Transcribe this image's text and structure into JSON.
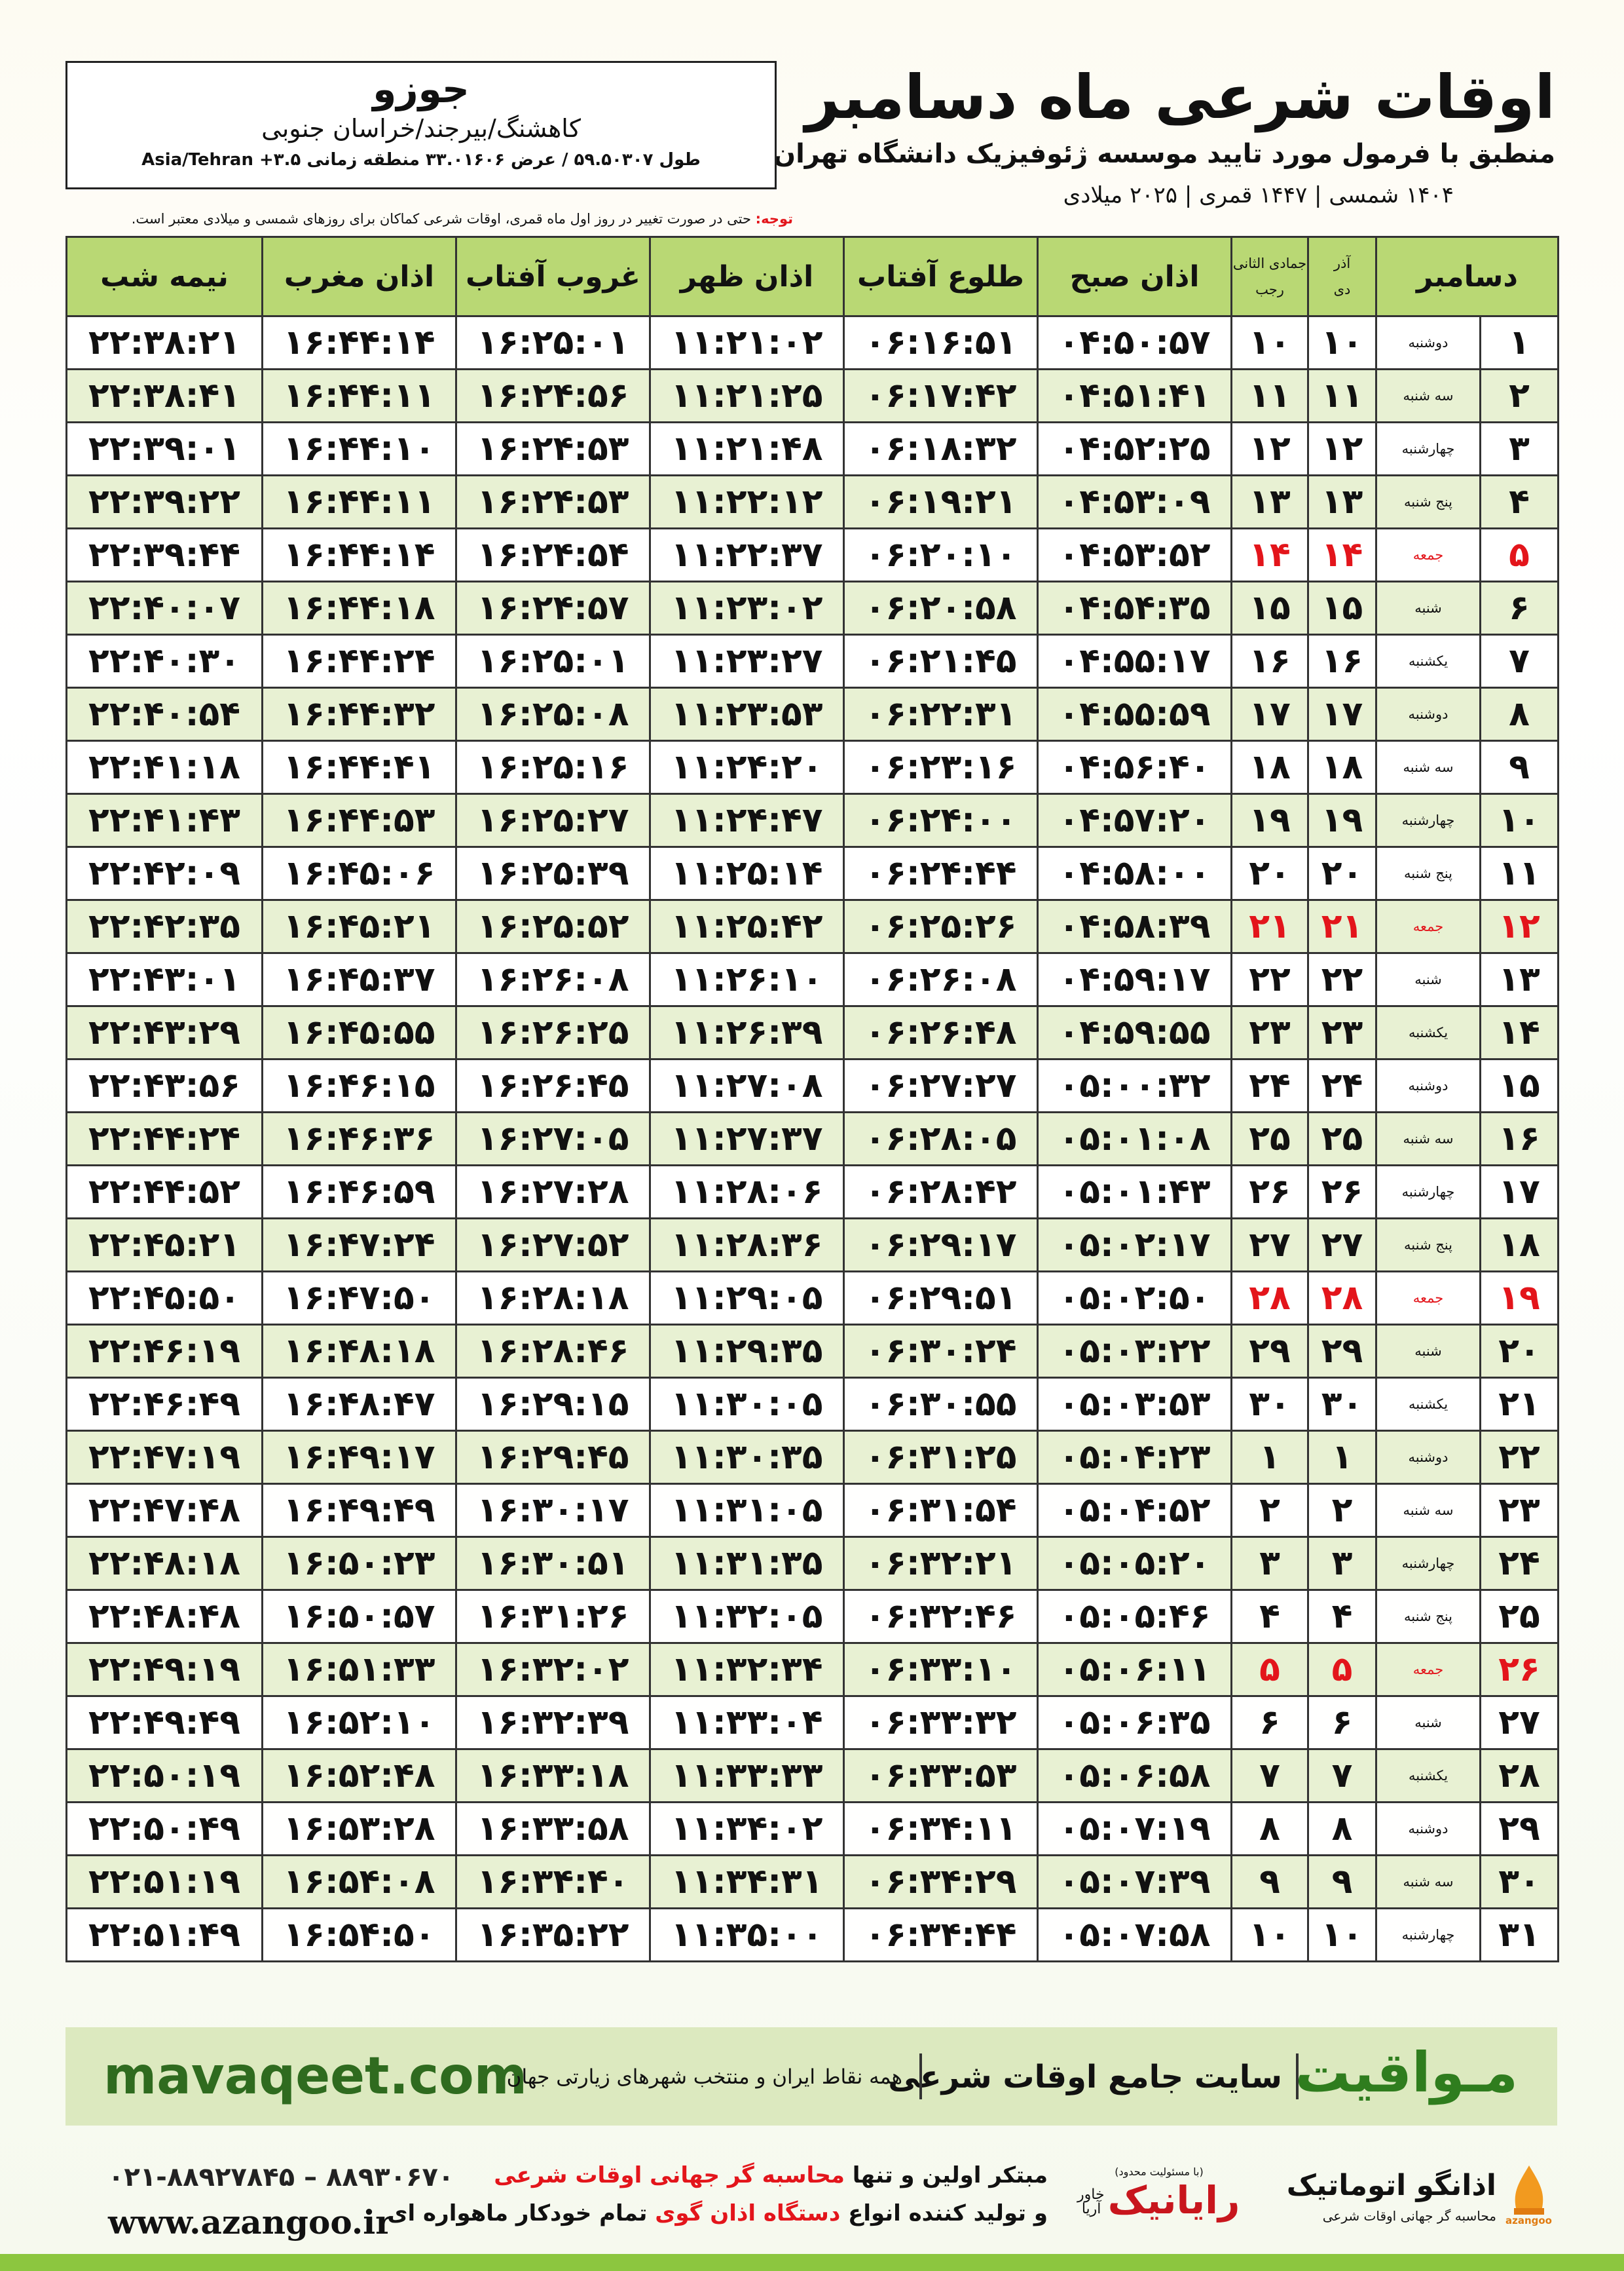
{
  "header": {
    "title": "اوقات شرعی ماه دسامبر",
    "subtitle": "منطبق با فرمول مورد تایید موسسه ژئوفیزیک دانشگاه تهران",
    "dates": "۱۴۰۴ شمسی | ۱۴۴۷ قمری | ۲۰۲۵ میلادی"
  },
  "location": {
    "city": "جوزو",
    "region": "کاهشنگ/بیرجند/خراسان جنوبی",
    "coords": "طول ۵۹.۵۰۳۰۷ / عرض ۳۳.۰۱۶۰۶ منطقه زمانی ۳.۵+ Asia/Tehran"
  },
  "note": {
    "label": "توجه:",
    "text": "حتی در صورت تغییر در روز اول ماه قمری، اوقات شرعی کماکان برای روزهای شمسی و میلادی معتبر است."
  },
  "table": {
    "headers": {
      "month": "دسامبر",
      "solar_top": "آذر",
      "solar_bottom": "دی",
      "lunar_top": "جمادی الثانی",
      "lunar_bottom": "رجب",
      "columns": [
        "اذان صبح",
        "طلوع آفتاب",
        "اذان ظهر",
        "غروب آفتاب",
        "اذان مغرب",
        "نیمه شب"
      ]
    },
    "rows": [
      {
        "cells": [
          "۱",
          "دوشنبه",
          "۱۰",
          "۱۰",
          "۰۴:۵۰:۵۷",
          "۰۶:۱۶:۵۱",
          "۱۱:۲۱:۰۲",
          "۱۶:۲۵:۰۱",
          "۱۶:۴۴:۱۴",
          "۲۲:۳۸:۲۱"
        ]
      },
      {
        "cells": [
          "۲",
          "سه شنبه",
          "۱۱",
          "۱۱",
          "۰۴:۵۱:۴۱",
          "۰۶:۱۷:۴۲",
          "۱۱:۲۱:۲۵",
          "۱۶:۲۴:۵۶",
          "۱۶:۴۴:۱۱",
          "۲۲:۳۸:۴۱"
        ]
      },
      {
        "cells": [
          "۳",
          "چهارشنبه",
          "۱۲",
          "۱۲",
          "۰۴:۵۲:۲۵",
          "۰۶:۱۸:۳۲",
          "۱۱:۲۱:۴۸",
          "۱۶:۲۴:۵۳",
          "۱۶:۴۴:۱۰",
          "۲۲:۳۹:۰۱"
        ]
      },
      {
        "cells": [
          "۴",
          "پنج شنبه",
          "۱۳",
          "۱۳",
          "۰۴:۵۳:۰۹",
          "۰۶:۱۹:۲۱",
          "۱۱:۲۲:۱۲",
          "۱۶:۲۴:۵۳",
          "۱۶:۴۴:۱۱",
          "۲۲:۳۹:۲۲"
        ]
      },
      {
        "cells": [
          "۵",
          "جمعه",
          "۱۴",
          "۱۴",
          "۰۴:۵۳:۵۲",
          "۰۶:۲۰:۱۰",
          "۱۱:۲۲:۳۷",
          "۱۶:۲۴:۵۴",
          "۱۶:۴۴:۱۴",
          "۲۲:۳۹:۴۴"
        ],
        "color": "#e3151b"
      },
      {
        "cells": [
          "۶",
          "شنبه",
          "۱۵",
          "۱۵",
          "۰۴:۵۴:۳۵",
          "۰۶:۲۰:۵۸",
          "۱۱:۲۳:۰۲",
          "۱۶:۲۴:۵۷",
          "۱۶:۴۴:۱۸",
          "۲۲:۴۰:۰۷"
        ]
      },
      {
        "cells": [
          "۷",
          "یکشنبه",
          "۱۶",
          "۱۶",
          "۰۴:۵۵:۱۷",
          "۰۶:۲۱:۴۵",
          "۱۱:۲۳:۲۷",
          "۱۶:۲۵:۰۱",
          "۱۶:۴۴:۲۴",
          "۲۲:۴۰:۳۰"
        ]
      },
      {
        "cells": [
          "۸",
          "دوشنبه",
          "۱۷",
          "۱۷",
          "۰۴:۵۵:۵۹",
          "۰۶:۲۲:۳۱",
          "۱۱:۲۳:۵۳",
          "۱۶:۲۵:۰۸",
          "۱۶:۴۴:۳۲",
          "۲۲:۴۰:۵۴"
        ]
      },
      {
        "cells": [
          "۹",
          "سه شنبه",
          "۱۸",
          "۱۸",
          "۰۴:۵۶:۴۰",
          "۰۶:۲۳:۱۶",
          "۱۱:۲۴:۲۰",
          "۱۶:۲۵:۱۶",
          "۱۶:۴۴:۴۱",
          "۲۲:۴۱:۱۸"
        ]
      },
      {
        "cells": [
          "۱۰",
          "چهارشنبه",
          "۱۹",
          "۱۹",
          "۰۴:۵۷:۲۰",
          "۰۶:۲۴:۰۰",
          "۱۱:۲۴:۴۷",
          "۱۶:۲۵:۲۷",
          "۱۶:۴۴:۵۳",
          "۲۲:۴۱:۴۳"
        ]
      },
      {
        "cells": [
          "۱۱",
          "پنج شنبه",
          "۲۰",
          "۲۰",
          "۰۴:۵۸:۰۰",
          "۰۶:۲۴:۴۴",
          "۱۱:۲۵:۱۴",
          "۱۶:۲۵:۳۹",
          "۱۶:۴۵:۰۶",
          "۲۲:۴۲:۰۹"
        ]
      },
      {
        "cells": [
          "۱۲",
          "جمعه",
          "۲۱",
          "۲۱",
          "۰۴:۵۸:۳۹",
          "۰۶:۲۵:۲۶",
          "۱۱:۲۵:۴۲",
          "۱۶:۲۵:۵۲",
          "۱۶:۴۵:۲۱",
          "۲۲:۴۲:۳۵"
        ],
        "color": "#e3151b"
      },
      {
        "cells": [
          "۱۳",
          "شنبه",
          "۲۲",
          "۲۲",
          "۰۴:۵۹:۱۷",
          "۰۶:۲۶:۰۸",
          "۱۱:۲۶:۱۰",
          "۱۶:۲۶:۰۸",
          "۱۶:۴۵:۳۷",
          "۲۲:۴۳:۰۱"
        ]
      },
      {
        "cells": [
          "۱۴",
          "یکشنبه",
          "۲۳",
          "۲۳",
          "۰۴:۵۹:۵۵",
          "۰۶:۲۶:۴۸",
          "۱۱:۲۶:۳۹",
          "۱۶:۲۶:۲۵",
          "۱۶:۴۵:۵۵",
          "۲۲:۴۳:۲۹"
        ]
      },
      {
        "cells": [
          "۱۵",
          "دوشنبه",
          "۲۴",
          "۲۴",
          "۰۵:۰۰:۳۲",
          "۰۶:۲۷:۲۷",
          "۱۱:۲۷:۰۸",
          "۱۶:۲۶:۴۵",
          "۱۶:۴۶:۱۵",
          "۲۲:۴۳:۵۶"
        ]
      },
      {
        "cells": [
          "۱۶",
          "سه شنبه",
          "۲۵",
          "۲۵",
          "۰۵:۰۱:۰۸",
          "۰۶:۲۸:۰۵",
          "۱۱:۲۷:۳۷",
          "۱۶:۲۷:۰۵",
          "۱۶:۴۶:۳۶",
          "۲۲:۴۴:۲۴"
        ]
      },
      {
        "cells": [
          "۱۷",
          "چهارشنبه",
          "۲۶",
          "۲۶",
          "۰۵:۰۱:۴۳",
          "۰۶:۲۸:۴۲",
          "۱۱:۲۸:۰۶",
          "۱۶:۲۷:۲۸",
          "۱۶:۴۶:۵۹",
          "۲۲:۴۴:۵۲"
        ]
      },
      {
        "cells": [
          "۱۸",
          "پنج شنبه",
          "۲۷",
          "۲۷",
          "۰۵:۰۲:۱۷",
          "۰۶:۲۹:۱۷",
          "۱۱:۲۸:۳۶",
          "۱۶:۲۷:۵۲",
          "۱۶:۴۷:۲۴",
          "۲۲:۴۵:۲۱"
        ]
      },
      {
        "cells": [
          "۱۹",
          "جمعه",
          "۲۸",
          "۲۸",
          "۰۵:۰۲:۵۰",
          "۰۶:۲۹:۵۱",
          "۱۱:۲۹:۰۵",
          "۱۶:۲۸:۱۸",
          "۱۶:۴۷:۵۰",
          "۲۲:۴۵:۵۰"
        ],
        "color": "#e3151b"
      },
      {
        "cells": [
          "۲۰",
          "شنبه",
          "۲۹",
          "۲۹",
          "۰۵:۰۳:۲۲",
          "۰۶:۳۰:۲۴",
          "۱۱:۲۹:۳۵",
          "۱۶:۲۸:۴۶",
          "۱۶:۴۸:۱۸",
          "۲۲:۴۶:۱۹"
        ]
      },
      {
        "cells": [
          "۲۱",
          "یکشنبه",
          "۳۰",
          "۳۰",
          "۰۵:۰۳:۵۳",
          "۰۶:۳۰:۵۵",
          "۱۱:۳۰:۰۵",
          "۱۶:۲۹:۱۵",
          "۱۶:۴۸:۴۷",
          "۲۲:۴۶:۴۹"
        ]
      },
      {
        "cells": [
          "۲۲",
          "دوشنبه",
          "۱",
          "۱",
          "۰۵:۰۴:۲۳",
          "۰۶:۳۱:۲۵",
          "۱۱:۳۰:۳۵",
          "۱۶:۲۹:۴۵",
          "۱۶:۴۹:۱۷",
          "۲۲:۴۷:۱۹"
        ]
      },
      {
        "cells": [
          "۲۳",
          "سه شنبه",
          "۲",
          "۲",
          "۰۵:۰۴:۵۲",
          "۰۶:۳۱:۵۴",
          "۱۱:۳۱:۰۵",
          "۱۶:۳۰:۱۷",
          "۱۶:۴۹:۴۹",
          "۲۲:۴۷:۴۸"
        ]
      },
      {
        "cells": [
          "۲۴",
          "چهارشنبه",
          "۳",
          "۳",
          "۰۵:۰۵:۲۰",
          "۰۶:۳۲:۲۱",
          "۱۱:۳۱:۳۵",
          "۱۶:۳۰:۵۱",
          "۱۶:۵۰:۲۳",
          "۲۲:۴۸:۱۸"
        ]
      },
      {
        "cells": [
          "۲۵",
          "پنج شنبه",
          "۴",
          "۴",
          "۰۵:۰۵:۴۶",
          "۰۶:۳۲:۴۶",
          "۱۱:۳۲:۰۵",
          "۱۶:۳۱:۲۶",
          "۱۶:۵۰:۵۷",
          "۲۲:۴۸:۴۸"
        ]
      },
      {
        "cells": [
          "۲۶",
          "جمعه",
          "۵",
          "۵",
          "۰۵:۰۶:۱۱",
          "۰۶:۳۳:۱۰",
          "۱۱:۳۲:۳۴",
          "۱۶:۳۲:۰۲",
          "۱۶:۵۱:۳۳",
          "۲۲:۴۹:۱۹"
        ],
        "color": "#e3151b"
      },
      {
        "cells": [
          "۲۷",
          "شنبه",
          "۶",
          "۶",
          "۰۵:۰۶:۳۵",
          "۰۶:۳۳:۳۲",
          "۱۱:۳۳:۰۴",
          "۱۶:۳۲:۳۹",
          "۱۶:۵۲:۱۰",
          "۲۲:۴۹:۴۹"
        ]
      },
      {
        "cells": [
          "۲۸",
          "یکشنبه",
          "۷",
          "۷",
          "۰۵:۰۶:۵۸",
          "۰۶:۳۳:۵۳",
          "۱۱:۳۳:۳۳",
          "۱۶:۳۳:۱۸",
          "۱۶:۵۲:۴۸",
          "۲۲:۵۰:۱۹"
        ]
      },
      {
        "cells": [
          "۲۹",
          "دوشنبه",
          "۸",
          "۸",
          "۰۵:۰۷:۱۹",
          "۰۶:۳۴:۱۱",
          "۱۱:۳۴:۰۲",
          "۱۶:۳۳:۵۸",
          "۱۶:۵۳:۲۸",
          "۲۲:۵۰:۴۹"
        ]
      },
      {
        "cells": [
          "۳۰",
          "سه شنبه",
          "۹",
          "۹",
          "۰۵:۰۷:۳۹",
          "۰۶:۳۴:۲۹",
          "۱۱:۳۴:۳۱",
          "۱۶:۳۴:۴۰",
          "۱۶:۵۴:۰۸",
          "۲۲:۵۱:۱۹"
        ]
      },
      {
        "cells": [
          "۳۱",
          "چهارشنبه",
          "۱۰",
          "۱۰",
          "۰۵:۰۷:۵۸",
          "۰۶:۳۴:۴۴",
          "۱۱:۳۵:۰۰",
          "۱۶:۳۵:۲۲",
          "۱۶:۵۴:۵۰",
          "۲۲:۵۱:۴۹"
        ]
      }
    ]
  },
  "banner": {
    "brand": "مـواقیت",
    "slogan": "سایت جامع اوقات شرعی",
    "coverage": "همه نقاط ایران و منتخب شهرهای زیارتی جهان",
    "website": "mavaqeet.com"
  },
  "footer": {
    "phones": "۰۲۱-۸۸۹۲۷۸۴۵ – ۸۸۹۳۰۶۷۰",
    "website": "www.azangoo.ir",
    "line1": [
      "مبتکر اولین و تنها",
      "محاسبه گر جهانی اوقات شرعی"
    ],
    "line2": [
      "و تولید کننده انواع",
      "دستگاه اذان گوی",
      "تمام خودکار ماهواره ای"
    ],
    "logo1": {
      "name": "رایانیک",
      "sub": "خاور آریا",
      "note": "(با مسئولیت محدود)"
    },
    "logo2": {
      "name": "اذانگو اتوماتیک",
      "sub": "محاسبه گر جهانی اوقات شرعی",
      "latin": "azangoo"
    }
  }
}
